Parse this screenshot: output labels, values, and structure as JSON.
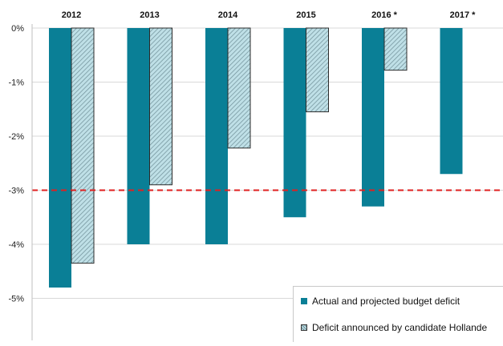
{
  "chart_data": {
    "type": "bar",
    "title": "",
    "xlabel": "",
    "ylabel": "",
    "categories": [
      "2012",
      "2013",
      "2014",
      "2015",
      "2016 *",
      "2017 *"
    ],
    "series": [
      {
        "name": "Actual and projected budget deficit",
        "values": [
          -4.8,
          -4.0,
          -4.0,
          -3.5,
          -3.3,
          -2.7
        ]
      },
      {
        "name": "Deficit announced by candidate Hollande",
        "values": [
          -4.35,
          -2.9,
          -2.22,
          -1.55,
          -0.78,
          null
        ]
      }
    ],
    "ylim": [
      -5.9,
      0
    ],
    "yticks": [
      0,
      -1,
      -2,
      -3,
      -4,
      -5
    ],
    "ytick_labels": [
      "0%",
      "-1%",
      "-2%",
      "-3%",
      "-4%",
      "-5%"
    ],
    "reference_line": {
      "value": -3,
      "style": "dashed",
      "color": "#e02020"
    },
    "legend_position": "bottom-right",
    "grid": true,
    "colors": {
      "actual": "#0a7f96",
      "hollande_fill": "#bfe0e7",
      "hollande_hatch": "#6f8f97",
      "grid": "#d9d9d9"
    }
  }
}
